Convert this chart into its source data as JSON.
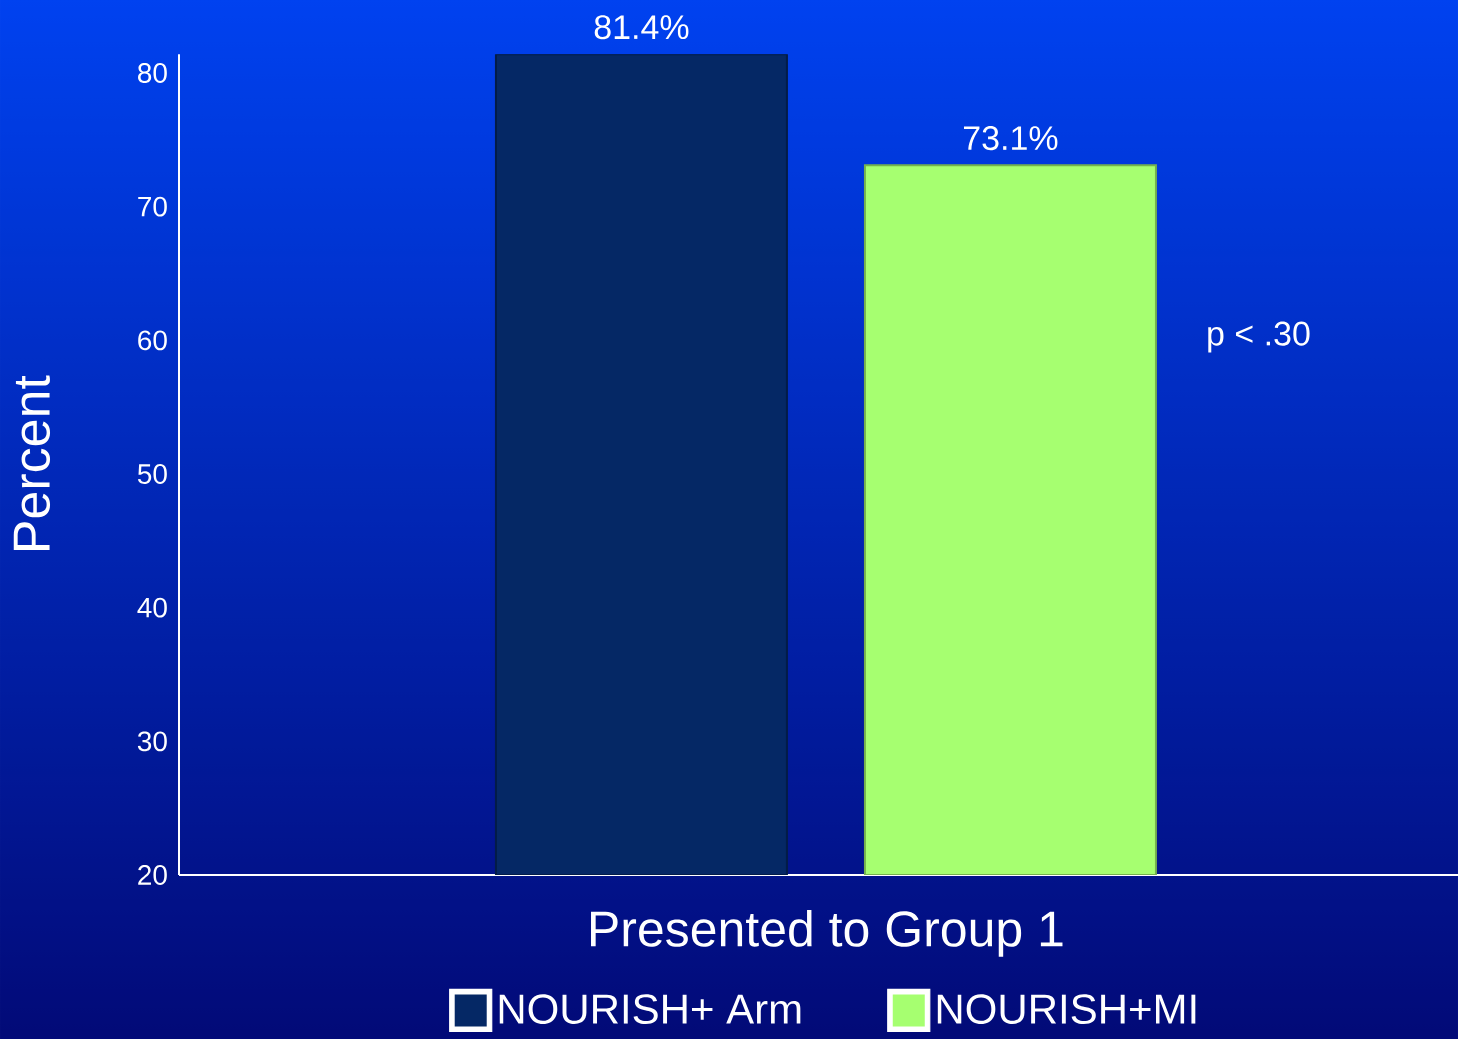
{
  "chart_data": {
    "type": "bar",
    "ylabel": "Percent",
    "categories": [
      "Presented to Group 1"
    ],
    "series": [
      {
        "name": "NOURISH+ Arm",
        "color": "#052865",
        "values": [
          81.4
        ],
        "value_labels": [
          "81.4%"
        ]
      },
      {
        "name": "NOURISH+MI",
        "color": "#a6ff70",
        "values": [
          73.1
        ],
        "value_labels": [
          "73.1%"
        ]
      }
    ],
    "ylim": [
      20,
      81.4
    ],
    "yticks": [
      20,
      30,
      40,
      50,
      60,
      70,
      80
    ],
    "grid": false,
    "legend": "bottom",
    "annotations": [
      "p < .30"
    ]
  }
}
